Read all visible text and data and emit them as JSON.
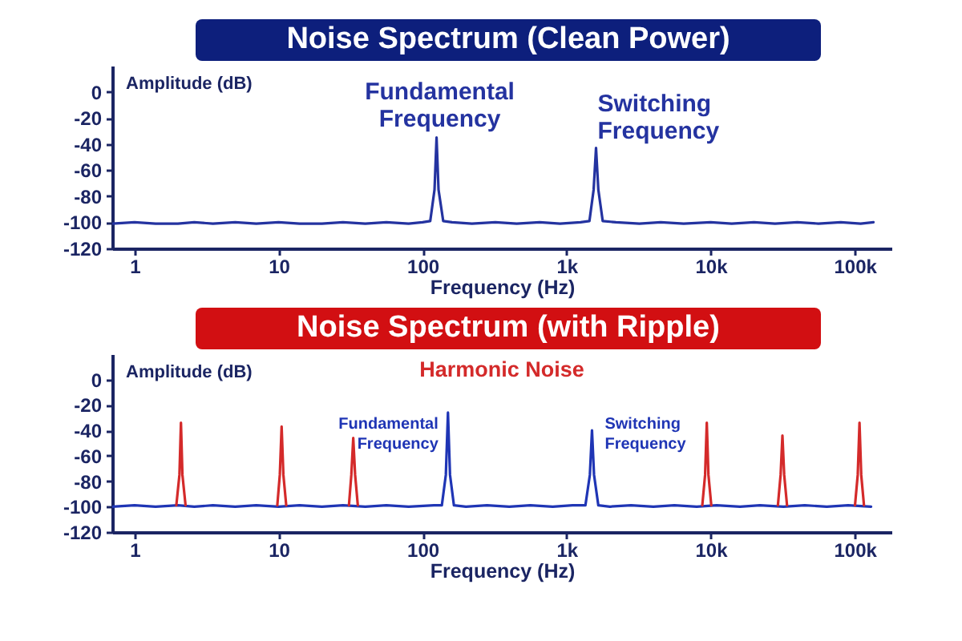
{
  "chart_data": [
    {
      "type": "line",
      "title": "Noise Spectrum (Clean Power)",
      "xlabel": "Frequency (Hz)",
      "ylabel": "Amplitude (dB)",
      "log": "x",
      "xlim": [
        0.7,
        180000
      ],
      "ylim": [
        -120,
        20
      ],
      "xticks": [
        1,
        10,
        100,
        {
          "value": 1000,
          "label": "1k"
        },
        {
          "value": 10000,
          "label": "10k"
        },
        {
          "value": 100000,
          "label": "100k"
        }
      ],
      "yticks": [
        -120,
        -100,
        -80,
        -60,
        -40,
        -20,
        0
      ],
      "annotations": [
        {
          "text": "Fundamental Frequency",
          "x": 125,
          "y": -35
        },
        {
          "text": "Switching Frequency",
          "x": 1600,
          "y": -43
        }
      ],
      "series": [
        {
          "color": "#2433a0",
          "x": [
            0.7,
            1,
            1.4,
            2,
            2.6,
            3.5,
            5,
            7,
            10,
            14,
            20,
            28,
            40,
            56,
            80,
            100,
            113,
            121,
            125,
            129,
            139,
            160,
            220,
            320,
            450,
            650,
            900,
            1250,
            1440,
            1540,
            1600,
            1660,
            1780,
            2200,
            3200,
            4500,
            6500,
            10000,
            14000,
            20000,
            28000,
            40000,
            56000,
            80000,
            110000,
            135000
          ],
          "values": [
            -101,
            -100,
            -101,
            -101,
            -100,
            -101,
            -100,
            -101,
            -100,
            -101,
            -101,
            -100,
            -101,
            -100,
            -101,
            -100,
            -99,
            -75,
            -35,
            -75,
            -99,
            -100,
            -101,
            -100,
            -101,
            -100,
            -101,
            -100,
            -99,
            -75,
            -43,
            -75,
            -99,
            -100,
            -101,
            -100,
            -101,
            -100,
            -101,
            -100,
            -101,
            -100,
            -101,
            -100,
            -101,
            -100
          ]
        }
      ]
    },
    {
      "type": "line",
      "title": "Noise Spectrum (with Ripple)",
      "xlabel": "Frequency (Hz)",
      "ylabel": "Amplitude (dB)",
      "log": "x",
      "xlim": [
        0.7,
        180000
      ],
      "ylim": [
        -120,
        20
      ],
      "xticks": [
        1,
        10,
        100,
        {
          "value": 1000,
          "label": "1k"
        },
        {
          "value": 10000,
          "label": "10k"
        },
        {
          "value": 100000,
          "label": "100k"
        }
      ],
      "yticks": [
        -120,
        -100,
        -80,
        -60,
        -40,
        -20,
        0
      ],
      "annotations": [
        {
          "text": "Fundamental Frequency",
          "x": 150,
          "y": -26
        },
        {
          "text": "Switching Frequency",
          "x": 1500,
          "y": -40
        }
      ],
      "series": [
        {
          "color": "#1f35b5",
          "x": [
            0.7,
            1,
            1.4,
            2,
            2.6,
            3.5,
            5,
            7,
            10,
            14,
            20,
            28,
            40,
            56,
            80,
            120,
            136,
            145,
            150,
            155,
            165,
            200,
            280,
            400,
            560,
            800,
            1100,
            1350,
            1450,
            1500,
            1550,
            1660,
            2000,
            2800,
            4000,
            5600,
            8000,
            11000,
            16000,
            22000,
            32000,
            45000,
            64000,
            90000,
            130000
          ],
          "values": [
            -100,
            -99,
            -100,
            -99,
            -100,
            -99,
            -100,
            -99,
            -100,
            -99,
            -100,
            -99,
            -100,
            -99,
            -100,
            -99,
            -99,
            -75,
            -26,
            -75,
            -99,
            -100,
            -99,
            -100,
            -99,
            -100,
            -99,
            -99,
            -75,
            -40,
            -75,
            -99,
            -100,
            -99,
            -100,
            -99,
            -100,
            -99,
            -100,
            -99,
            -100,
            -99,
            -100,
            -99,
            -100
          ]
        },
        {
          "name": "Harmonic Noise",
          "color": "#d42a2a",
          "x": [
            1.95,
            2.05,
            2.1,
            2.15,
            2.26,
            3,
            9.8,
            10.2,
            10.5,
            10.8,
            11.3,
            20,
            30.8,
            32,
            33,
            34,
            35.5,
            3000,
            8750,
            9150,
            9400,
            9650,
            10100,
            20000,
            29300,
            30600,
            31500,
            32400,
            33900,
            60000,
            100500,
            105000,
            108000,
            111000,
            116000
          ],
          "values": [
            -99,
            -75,
            -34,
            -75,
            -99,
            null,
            -99,
            -75,
            -37,
            -75,
            -99,
            null,
            -99,
            -75,
            -46,
            -75,
            -99,
            null,
            -99,
            -75,
            -34,
            -75,
            -99,
            null,
            -99,
            -75,
            -44,
            -75,
            -99,
            null,
            -99,
            -75,
            -34,
            -75,
            -99
          ]
        }
      ]
    }
  ]
}
